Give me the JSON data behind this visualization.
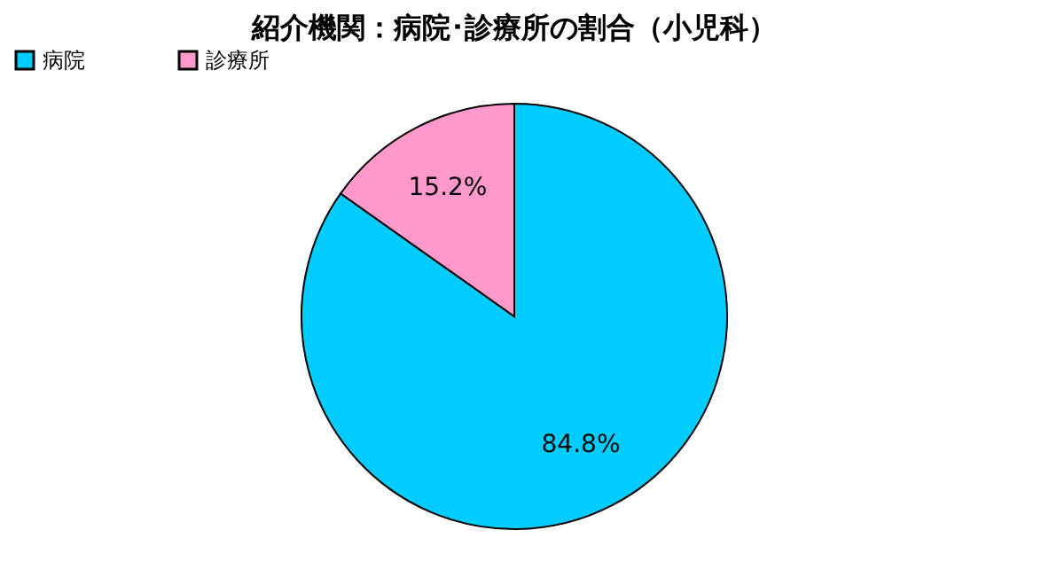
{
  "chart_data": {
    "type": "pie",
    "title": "紹介機関：病院･診療所の割合（小児科）",
    "categories": [
      "病院",
      "診療所"
    ],
    "values": [
      84.8,
      15.2
    ],
    "colors": [
      "#00ccff",
      "#ff99cc"
    ],
    "value_labels": [
      "84.8%",
      "15.2%"
    ],
    "legend": "top"
  }
}
